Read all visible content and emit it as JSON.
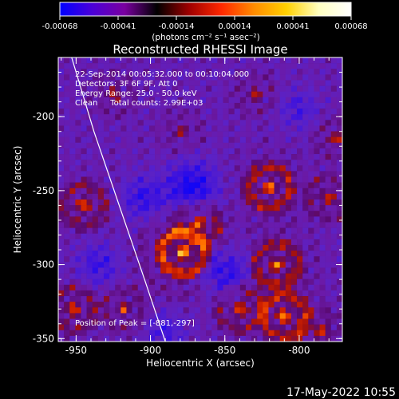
{
  "colorbar": {
    "tick_labels": [
      "-0.00068",
      "-0.00041",
      "-0.00014",
      "0.00014",
      "0.00041",
      "0.00068"
    ],
    "units": "(photons cm⁻² s⁻¹ asec⁻²)",
    "colors": [
      "#0000ff",
      "#4b00d8",
      "#7a00a0",
      "#000000",
      "#a00000",
      "#ff2800",
      "#ff8c00",
      "#ffd000",
      "#ffffc0",
      "#ffffff"
    ]
  },
  "chart_data": {
    "type": "heatmap",
    "title": "Reconstructed RHESSI Image",
    "xlabel": "Heliocentric X (arcsec)",
    "ylabel": "Heliocentric Y (arcsec)",
    "xlim": [
      -962,
      -771
    ],
    "ylim": [
      -352,
      -160
    ],
    "x_ticks": [
      -950,
      -900,
      -850,
      -800
    ],
    "y_ticks": [
      -200,
      -250,
      -300,
      -350
    ],
    "x_tick_labels": [
      "-950",
      "-900",
      "-850",
      "-800"
    ],
    "y_tick_labels": [
      "-200",
      "-250",
      "-300",
      "-350"
    ],
    "info_lines": [
      "22-Sep-2014 00:05:32.000 to 00:10:04.000",
      "Detectors: 3F 6F 9F, Att 0",
      "Energy Range: 25.0 - 50.0 keV",
      "Clean     Total counts: 2.99E+03"
    ],
    "peak_text": "Position of Peak = [-881,-297]",
    "peak": {
      "x": -881,
      "y": -297
    },
    "limb_curve": [
      [
        -953,
        -160
      ],
      [
        -938,
        -210
      ],
      [
        -921,
        -260
      ],
      [
        -904,
        -310
      ],
      [
        -890,
        -352
      ]
    ],
    "hotspots": [
      {
        "x": -878,
        "y": -292,
        "intensity": 1.0,
        "radius": 14
      },
      {
        "x": -868,
        "y": -272,
        "intensity": 0.7,
        "radius": 10
      },
      {
        "x": -820,
        "y": -248,
        "intensity": 0.8,
        "radius": 12
      },
      {
        "x": -815,
        "y": -300,
        "intensity": 0.75,
        "radius": 12
      },
      {
        "x": -810,
        "y": -335,
        "intensity": 0.85,
        "radius": 12
      },
      {
        "x": -840,
        "y": -330,
        "intensity": 0.7,
        "radius": 10
      },
      {
        "x": -945,
        "y": -260,
        "intensity": 0.75,
        "radius": 10
      },
      {
        "x": -952,
        "y": -330,
        "intensity": 0.7,
        "radius": 10
      },
      {
        "x": -918,
        "y": -330,
        "intensity": 0.55,
        "radius": 9
      },
      {
        "x": -780,
        "y": -255,
        "intensity": 0.6,
        "radius": 9
      },
      {
        "x": -775,
        "y": -215,
        "intensity": 0.55,
        "radius": 8
      },
      {
        "x": -830,
        "y": -185,
        "intensity": 0.45,
        "radius": 8
      },
      {
        "x": -925,
        "y": -185,
        "intensity": 0.5,
        "radius": 8
      },
      {
        "x": -880,
        "y": -210,
        "intensity": 0.4,
        "radius": 8
      },
      {
        "x": -785,
        "y": -345,
        "intensity": 0.6,
        "radius": 8
      }
    ],
    "negative_spots": [
      {
        "x": -872,
        "y": -248,
        "intensity": 0.8,
        "radius": 12
      },
      {
        "x": -850,
        "y": -305,
        "intensity": 0.7,
        "radius": 11
      },
      {
        "x": -905,
        "y": -255,
        "intensity": 0.55,
        "radius": 10
      },
      {
        "x": -935,
        "y": -300,
        "intensity": 0.5,
        "radius": 10
      },
      {
        "x": -890,
        "y": -345,
        "intensity": 0.45,
        "radius": 9
      },
      {
        "x": -800,
        "y": -195,
        "intensity": 0.4,
        "radius": 9
      }
    ]
  },
  "footer": {
    "timestamp": "17-May-2022 10:55"
  }
}
